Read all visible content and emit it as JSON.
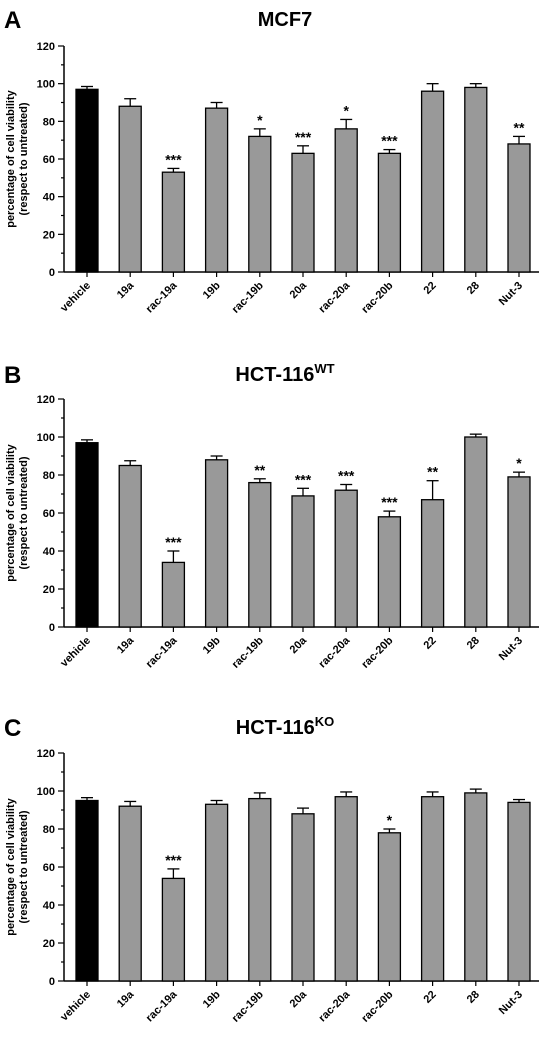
{
  "colors": {
    "vehicle": "#000000",
    "treatment": "#999999",
    "outline": "#000000"
  },
  "chart_data": [
    {
      "type": "bar",
      "panel": "A",
      "title": "MCF7",
      "title_sup": "",
      "ylabel": [
        "percentage of cell viability",
        "(respect to untreated)"
      ],
      "ylim": [
        0,
        120
      ],
      "yticks": [
        "0",
        "20",
        "40",
        "60",
        "80",
        "100",
        "120"
      ],
      "categories": [
        "vehicle",
        "19a",
        "rac-19a",
        "19b",
        "rac-19b",
        "20a",
        "rac-20a",
        "rac-20b",
        "22",
        "28",
        "Nut-3"
      ],
      "values": [
        97,
        88,
        53,
        87,
        72,
        63,
        76,
        63,
        96,
        98,
        68
      ],
      "errors": [
        1.5,
        4,
        2,
        3,
        4,
        4,
        5,
        2,
        4,
        2,
        4
      ],
      "significance": [
        "",
        "",
        "***",
        "",
        "*",
        "***",
        "*",
        "***",
        "",
        "",
        "**"
      ]
    },
    {
      "type": "bar",
      "panel": "B",
      "title": "HCT-116",
      "title_sup": "WT",
      "ylabel": [
        "percentage of cell viability",
        "(respect to untreated)"
      ],
      "ylim": [
        0,
        120
      ],
      "yticks": [
        "0",
        "20",
        "40",
        "60",
        "80",
        "100",
        "120"
      ],
      "categories": [
        "vehicle",
        "19a",
        "rac-19a",
        "19b",
        "rac-19b",
        "20a",
        "rac-20a",
        "rac-20b",
        "22",
        "28",
        "Nut-3"
      ],
      "values": [
        97,
        85,
        34,
        88,
        76,
        69,
        72,
        58,
        67,
        100,
        79
      ],
      "errors": [
        1.5,
        2.5,
        6,
        2,
        2,
        4,
        3,
        3,
        10,
        1.5,
        2.5
      ],
      "significance": [
        "",
        "",
        "***",
        "",
        "**",
        "***",
        "***",
        "***",
        "**",
        "",
        "*"
      ]
    },
    {
      "type": "bar",
      "panel": "C",
      "title": "HCT-116",
      "title_sup": "KO",
      "ylabel": [
        "percentage of cell viability",
        "(respect to untreated)"
      ],
      "ylim": [
        0,
        120
      ],
      "yticks": [
        "0",
        "20",
        "40",
        "60",
        "80",
        "100",
        "120"
      ],
      "categories": [
        "vehicle",
        "19a",
        "rac-19a",
        "19b",
        "rac-19b",
        "20a",
        "rac-20a",
        "rac-20b",
        "22",
        "28",
        "Nut-3"
      ],
      "values": [
        95,
        92,
        54,
        93,
        96,
        88,
        97,
        78,
        97,
        99,
        94
      ],
      "errors": [
        1.5,
        2.5,
        5,
        2,
        3,
        3,
        2.5,
        2,
        2.5,
        2,
        1.5
      ],
      "significance": [
        "",
        "",
        "***",
        "",
        "",
        "",
        "",
        "*",
        "",
        "",
        ""
      ]
    }
  ]
}
